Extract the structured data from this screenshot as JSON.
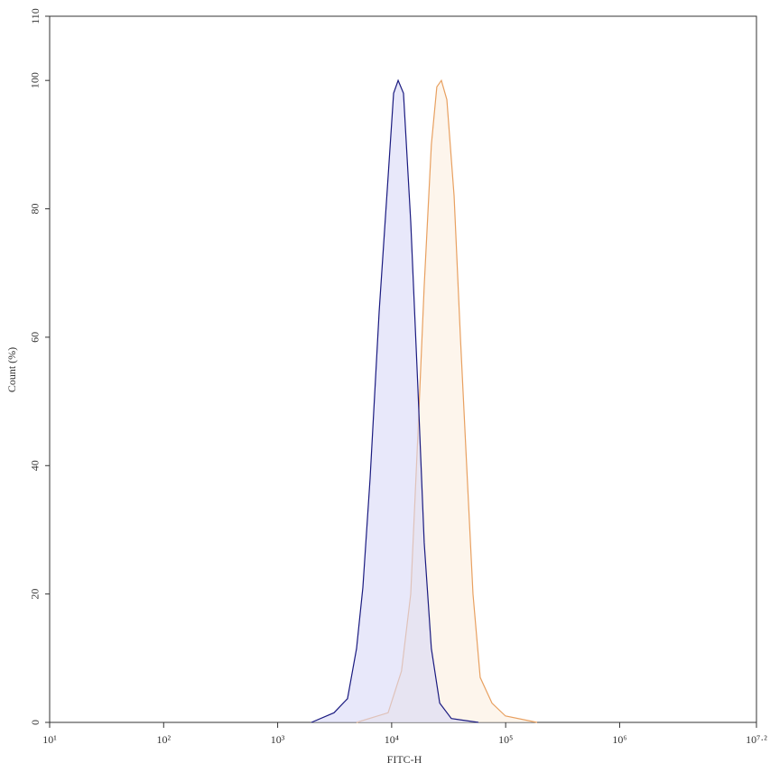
{
  "chart_data": {
    "type": "area",
    "xlabel": "FITC-H",
    "ylabel": "Count (%)",
    "xscale": "log",
    "xlim": [
      10,
      15848932
    ],
    "ylim": [
      0,
      110
    ],
    "xticks": [
      {
        "value": 10,
        "label": "10¹"
      },
      {
        "value": 100,
        "label": "10²"
      },
      {
        "value": 1000,
        "label": "10³"
      },
      {
        "value": 10000,
        "label": "10⁴"
      },
      {
        "value": 100000,
        "label": "10⁵"
      },
      {
        "value": 1000000,
        "label": "10⁶"
      },
      {
        "value": 15848932,
        "label": "10⁷·²"
      }
    ],
    "yticks": [
      0,
      20,
      40,
      60,
      80,
      100,
      110
    ],
    "series": [
      {
        "color": "#e8a060",
        "fill": "#fbeedf",
        "x": [
          4920,
          9310,
          12200,
          14700,
          17000,
          19300,
          22300,
          24900,
          27300,
          30500,
          35300,
          40100,
          45500,
          51700,
          59800,
          75900,
          99600,
          188800
        ],
        "values": [
          0,
          1.5,
          8,
          20,
          45,
          68,
          90,
          99,
          100,
          97,
          82,
          60,
          40,
          20,
          7,
          3,
          1,
          0
        ]
      },
      {
        "color": "#1a1a80",
        "fill": "#d8d8f6",
        "x": [
          1977,
          3120,
          4100,
          4920,
          5590,
          6470,
          7770,
          9310,
          10400,
          11400,
          12700,
          14700,
          17000,
          19300,
          22300,
          26400,
          33400,
          57700
        ],
        "values": [
          0,
          1.5,
          3.7,
          11.5,
          21,
          38,
          64,
          85,
          98,
          100,
          98,
          78,
          52,
          28,
          11.5,
          3,
          0.6,
          0
        ]
      }
    ]
  }
}
